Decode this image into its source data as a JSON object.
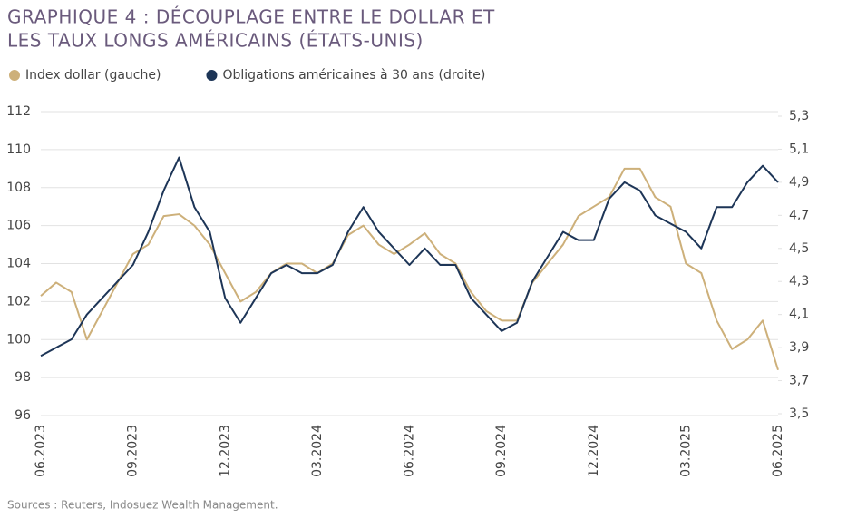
{
  "chart_data": {
    "type": "line",
    "title": [
      "GRAPHIQUE 4 : DÉCOUPLAGE ENTRE LE DOLLAR ET",
      "LES TAUX LONGS AMÉRICAINS (ÉTATS-UNIS)"
    ],
    "source": "Sources : Reuters, Indosuez Wealth Management.",
    "categories": [
      "06.2023",
      null,
      null,
      null,
      null,
      null,
      "09.2023",
      null,
      null,
      null,
      null,
      null,
      "12.2023",
      null,
      null,
      null,
      null,
      null,
      "03.2024",
      null,
      null,
      null,
      null,
      null,
      "06.2024",
      null,
      null,
      null,
      null,
      null,
      "09.2024",
      null,
      null,
      null,
      null,
      null,
      "12.2024",
      null,
      null,
      null,
      null,
      null,
      "03.2025",
      null,
      null,
      null,
      null,
      null,
      "06.2025"
    ],
    "series": [
      {
        "name": "Index dollar (gauche)",
        "color": "#cdb07a",
        "values": [
          102.3,
          103,
          102.5,
          100,
          101.5,
          103,
          104.5,
          105,
          106.5,
          106.6,
          106,
          105,
          103.5,
          102,
          102.5,
          103.5,
          104,
          104,
          103.5,
          104,
          105.5,
          106,
          105,
          104.5,
          105,
          105.6,
          104.5,
          104,
          102.5,
          101.5,
          101,
          101,
          103,
          104,
          105,
          106.5,
          107,
          107.5,
          109,
          109,
          107.5,
          107,
          104,
          103.5,
          101,
          99.5,
          100,
          101,
          98.4
        ]
      },
      {
        "name": "Obligations américaines à 30 ans (droite)",
        "color": "#1d3557",
        "axis": "y2",
        "values": [
          3.85,
          3.9,
          3.95,
          4.1,
          4.2,
          4.3,
          4.4,
          4.6,
          4.85,
          5.05,
          4.75,
          4.6,
          4.2,
          4.05,
          4.2,
          4.35,
          4.4,
          4.35,
          4.35,
          4.4,
          4.6,
          4.75,
          4.6,
          4.5,
          4.4,
          4.5,
          4.4,
          4.4,
          4.2,
          4.1,
          4.0,
          4.05,
          4.3,
          4.45,
          4.6,
          4.55,
          4.55,
          4.8,
          4.9,
          4.85,
          4.7,
          4.65,
          4.6,
          4.5,
          4.75,
          4.75,
          4.9,
          5.0,
          4.9
        ]
      }
    ],
    "ylim": [
      96,
      112
    ],
    "yticks": [
      96,
      98,
      100,
      102,
      104,
      106,
      108,
      110,
      112
    ],
    "y2lim": [
      3.5,
      5.3
    ],
    "y2ticks": [
      {
        "value": 3.5,
        "label": "3,5"
      },
      {
        "value": 3.7,
        "label": "3,7"
      },
      {
        "value": 3.9,
        "label": "3,9"
      },
      {
        "value": 4.1,
        "label": "4,1"
      },
      {
        "value": 4.3,
        "label": "4,3"
      },
      {
        "value": 4.5,
        "label": "4,5"
      },
      {
        "value": 4.7,
        "label": "4,7"
      },
      {
        "value": 4.9,
        "label": "4,9"
      },
      {
        "value": 5.1,
        "label": "5,1"
      },
      {
        "value": 5.3,
        "label": "5,3"
      }
    ],
    "grid": true
  }
}
